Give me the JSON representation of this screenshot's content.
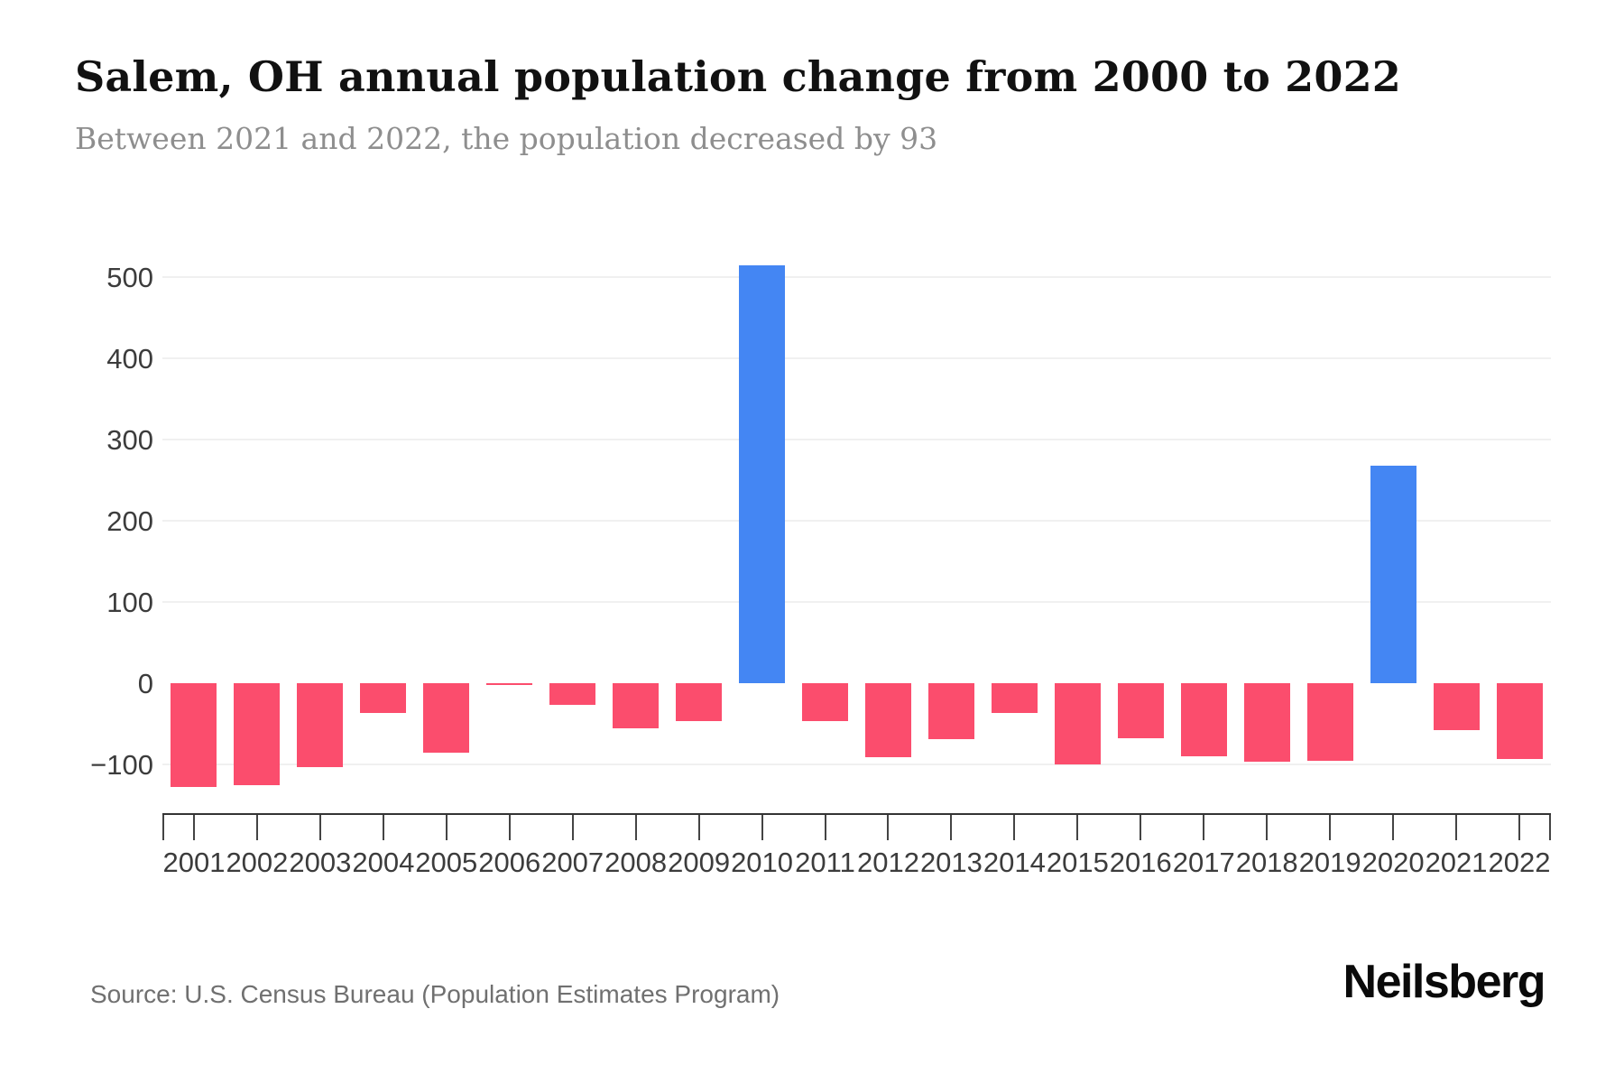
{
  "header": {
    "title": "Salem, OH annual population change from 2000 to 2022",
    "subtitle": "Between 2021 and 2022, the population decreased by 93"
  },
  "footer": {
    "source": "Source: U.S. Census Bureau (Population Estimates Program)",
    "brand": "Neilsberg"
  },
  "colors": {
    "bar_negative": "#fb4d6d",
    "bar_positive": "#4486f3",
    "gridline": "#f0f0f0",
    "axis": "#333333"
  },
  "chart_data": {
    "type": "bar",
    "title": "Salem, OH annual population change from 2000 to 2022",
    "subtitle": "Between 2021 and 2022, the population decreased by 93",
    "xlabel": "",
    "ylabel": "",
    "categories": [
      "2001",
      "2002",
      "2003",
      "2004",
      "2005",
      "2006",
      "2007",
      "2008",
      "2009",
      "2010",
      "2011",
      "2012",
      "2013",
      "2014",
      "2015",
      "2016",
      "2017",
      "2018",
      "2019",
      "2020",
      "2021",
      "2022"
    ],
    "values": [
      -128,
      -126,
      -103,
      -37,
      -85,
      -2,
      -27,
      -55,
      -47,
      514,
      -47,
      -91,
      -69,
      -37,
      -100,
      -68,
      -90,
      -97,
      -96,
      268,
      -58,
      -93
    ],
    "positive_years": [
      "2010",
      "2020"
    ],
    "yticks": [
      500,
      400,
      300,
      200,
      100,
      0,
      -100
    ],
    "ylim": [
      -150,
      550
    ],
    "grid": "horizontal-light",
    "legend": "none"
  }
}
